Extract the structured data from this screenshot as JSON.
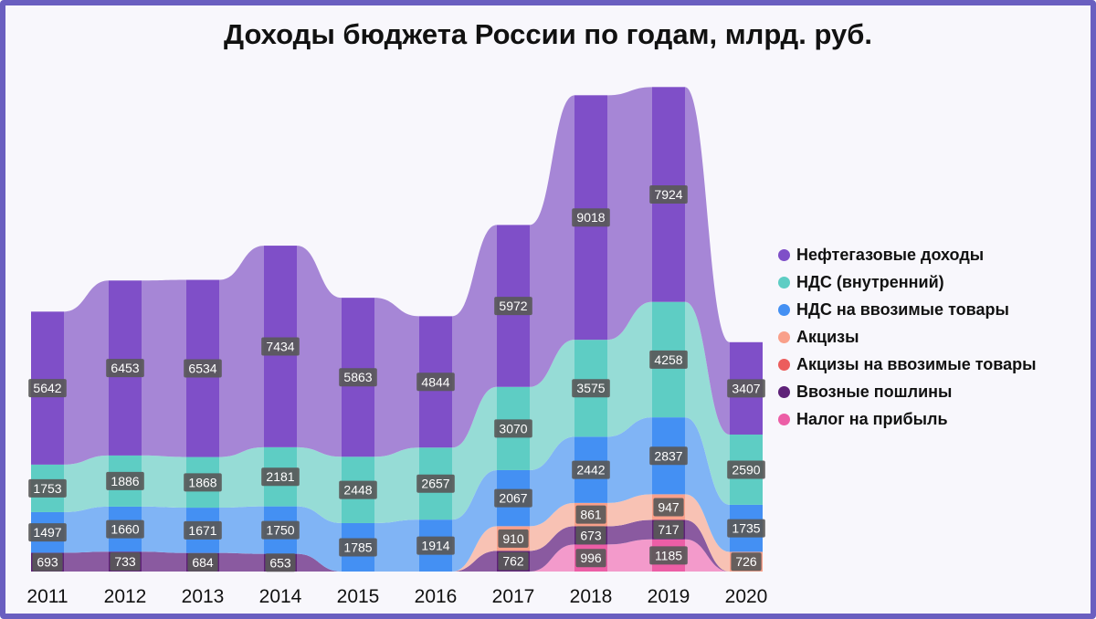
{
  "chart_data": {
    "type": "bar",
    "variant": "stacked-ribbon",
    "title": "Доходы бюджета России по годам, млрд. руб.",
    "categories": [
      "2011",
      "2012",
      "2013",
      "2014",
      "2015",
      "2016",
      "2017",
      "2018",
      "2019",
      "2020"
    ],
    "series": [
      {
        "name": "Нефтегазовые доходы",
        "color": "#7f4fc8",
        "ribbon": "#a686d6",
        "values": [
          5642,
          6453,
          6534,
          7434,
          5863,
          4844,
          5972,
          9018,
          7924,
          3407
        ]
      },
      {
        "name": "НДС (внутренний)",
        "color": "#5ecdc4",
        "ribbon": "#96dcd6",
        "values": [
          1753,
          1886,
          1868,
          2181,
          2448,
          2657,
          3070,
          3575,
          4258,
          2590
        ]
      },
      {
        "name": "НДС на ввозимые товары",
        "color": "#4490f3",
        "ribbon": "#80b4f5",
        "values": [
          1497,
          1660,
          1671,
          1750,
          1785,
          1914,
          2067,
          2442,
          2837,
          1735
        ]
      },
      {
        "name": "Акцизы",
        "color": "#f9a08a",
        "ribbon": "#f8c2b4",
        "values": [
          null,
          null,
          null,
          null,
          null,
          null,
          910,
          861,
          947,
          726
        ]
      },
      {
        "name": "Акцизы на ввозимые товары",
        "color": "#ec5d5d",
        "ribbon": "#f09a9a",
        "values": [
          null,
          null,
          null,
          null,
          null,
          null,
          null,
          null,
          null,
          null
        ]
      },
      {
        "name": "Ввозные пошлины",
        "color": "#5e2178",
        "ribbon": "#8a5aa0",
        "values": [
          693,
          733,
          684,
          653,
          null,
          null,
          762,
          673,
          717,
          null
        ]
      },
      {
        "name": "Налог на прибыль",
        "color": "#ec5ea6",
        "ribbon": "#f39acb",
        "values": [
          null,
          null,
          null,
          null,
          null,
          null,
          null,
          996,
          1185,
          null
        ]
      }
    ],
    "legend_position": "right",
    "grid": false
  }
}
